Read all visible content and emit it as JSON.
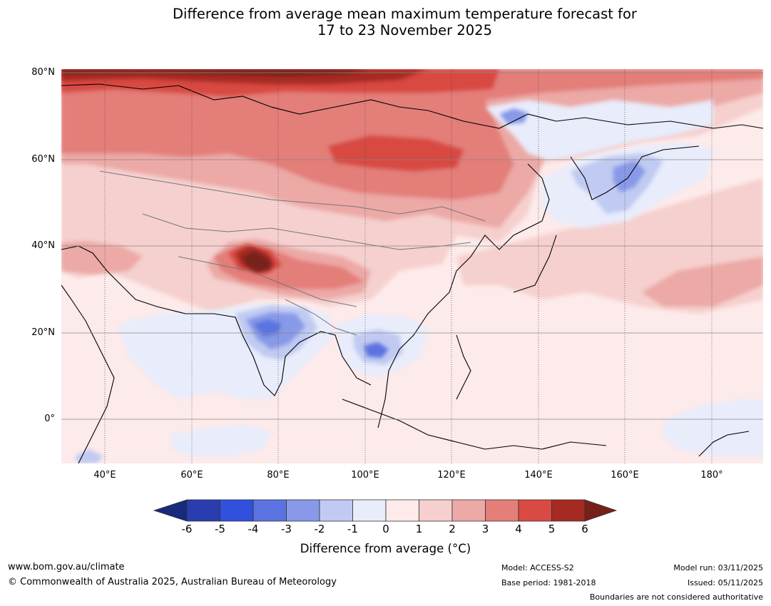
{
  "title": {
    "line1": "Difference from average mean maximum temperature forecast for",
    "line2": "17 to 23 November 2025"
  },
  "map": {
    "lat_labels": [
      "80°N",
      "60°N",
      "40°N",
      "20°N",
      "0°"
    ],
    "lon_labels": [
      "40°E",
      "60°E",
      "80°E",
      "100°E",
      "120°E",
      "140°E",
      "160°E",
      "180°"
    ],
    "extent": {
      "lon": [
        30,
        190
      ],
      "lat": [
        -10,
        81
      ]
    },
    "regions": [
      {
        "name": "arctic-siberia-warm",
        "anomaly": 6
      },
      {
        "name": "west-siberia-warm",
        "anomaly": 4
      },
      {
        "name": "central-siberia-warm",
        "anomaly": 5
      },
      {
        "name": "tibet-karakoram-warm",
        "anomaly": 6
      },
      {
        "name": "india-cool",
        "anomaly": -4
      },
      {
        "name": "indochina-cool",
        "anomaly": -4
      },
      {
        "name": "sea-of-okhotsk-cool",
        "anomaly": -4
      },
      {
        "name": "northwest-pacific-warm",
        "anomaly": 2
      }
    ]
  },
  "colorbar": {
    "ticks": [
      "-6",
      "-5",
      "-4",
      "-3",
      "-2",
      "-1",
      "0",
      "1",
      "2",
      "3",
      "4",
      "5",
      "6"
    ],
    "colors": [
      "#172a7c",
      "#2a3dae",
      "#3050dd",
      "#5b73e0",
      "#8799e8",
      "#c0caf2",
      "#e8ecfb",
      "#fdeaea",
      "#f5d0ce",
      "#eca9a6",
      "#e37e79",
      "#d84a42",
      "#a62a22",
      "#77201a"
    ],
    "label": "Difference from average (°C)"
  },
  "footer": {
    "website": "www.bom.gov.au/climate",
    "copyright": "© Commonwealth of Australia 2025, Australian Bureau of Meteorology",
    "model": "Model: ACCESS-S2",
    "base_period": "Base period: 1981-2018",
    "model_run": "Model run: 03/11/2025",
    "issued": "Issued: 05/11/2025",
    "disclaimer": "Boundaries are not considered authoritative"
  }
}
